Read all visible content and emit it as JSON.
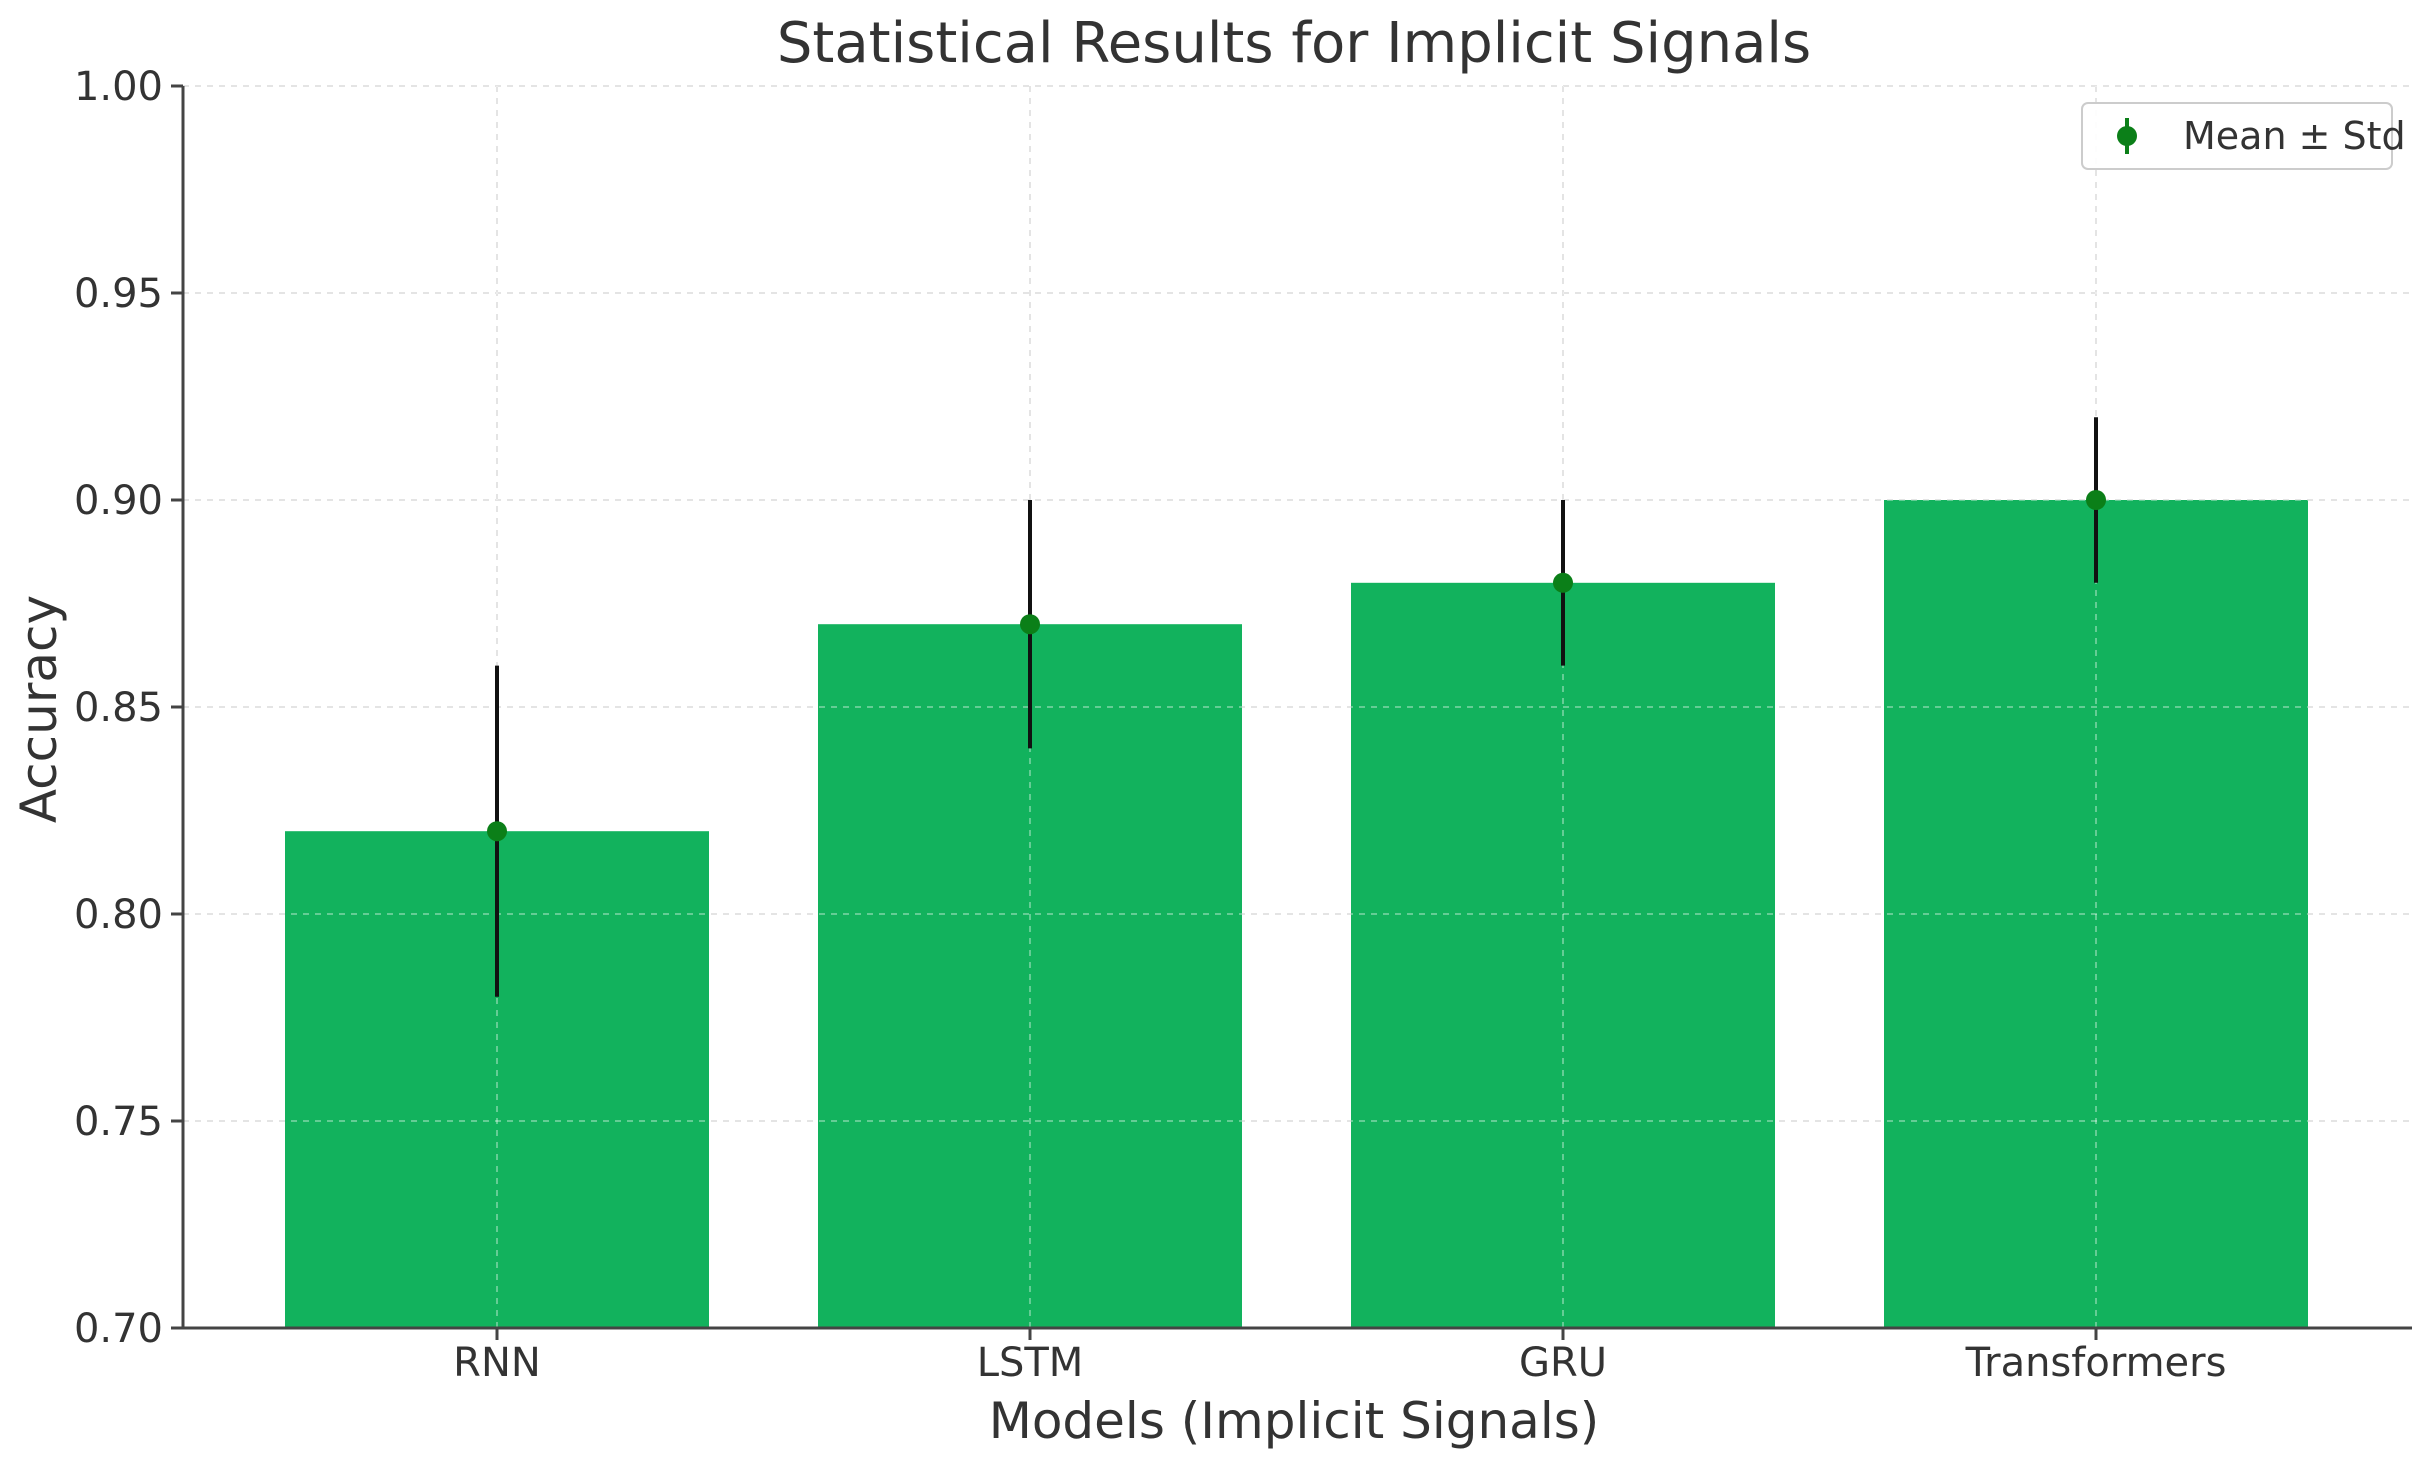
{
  "chart_data": {
    "type": "bar",
    "title": "Statistical Results for Implicit Signals",
    "xlabel": "Models (Implicit Signals)",
    "ylabel": "Accuracy",
    "categories": [
      "RNN",
      "LSTM",
      "GRU",
      "Transformers"
    ],
    "values": [
      0.82,
      0.87,
      0.88,
      0.9
    ],
    "errors": [
      0.04,
      0.03,
      0.02,
      0.02
    ],
    "ylim": [
      0.7,
      1.0
    ],
    "yticks": [
      0.7,
      0.75,
      0.8,
      0.85,
      0.9,
      0.95,
      1.0
    ],
    "ytick_labels": [
      "0.70",
      "0.75",
      "0.80",
      "0.85",
      "0.90",
      "0.95",
      "1.00"
    ],
    "grid": true,
    "legend": {
      "placement": "top-right",
      "entries": [
        {
          "label": "Mean ± Std",
          "marker": "circle-with-errorbar"
        }
      ]
    },
    "colors": {
      "bar": "#12b25d",
      "marker": "#0b7f18",
      "errorbar": "#111111",
      "grid": "#d6d6d6",
      "axis": "#444444"
    }
  }
}
